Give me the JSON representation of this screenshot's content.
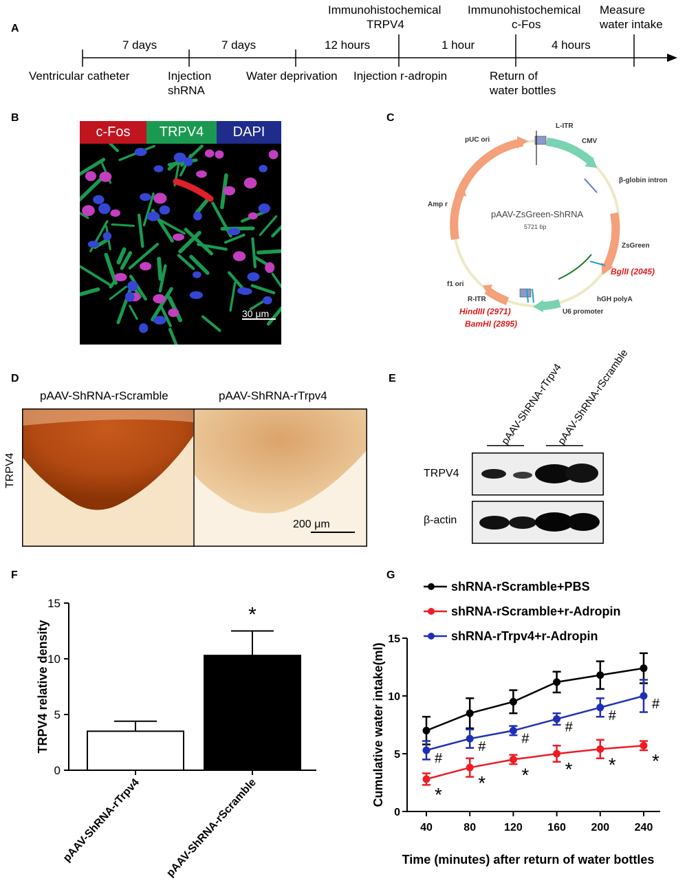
{
  "panel_labels": {
    "A": "A",
    "B": "B",
    "C": "C",
    "D": "D",
    "E": "E",
    "F": "F",
    "G": "G"
  },
  "timeline": {
    "intervals": [
      "7 days",
      "7 days",
      "12 hours",
      "1 hour",
      "4 hours"
    ],
    "events_below": [
      "Ventricular catheter",
      "Injection",
      "shRNA",
      "Water deprivation",
      "Injection r-adropin",
      "Return of",
      "water bottles"
    ],
    "events_above": [
      "Immunohistochemical",
      "TRPV4",
      "Immunohistochemical",
      "c-Fos",
      "Measure",
      "water intake"
    ]
  },
  "panel_b": {
    "legend": [
      "c-Fos",
      "TRPV4",
      "DAPI"
    ],
    "scale_bar": "30 μm",
    "colors": {
      "cfos": "#c0141f",
      "trpv4": "#1a9a50",
      "dapi": "#1f2c8c"
    }
  },
  "panel_c": {
    "title": "pAAV-ZsGreen-ShRNA",
    "size": "5721 bp",
    "features": [
      "L-ITR",
      "CMV",
      "β-globin intron",
      "ZsGreen",
      "hGH polyA",
      "U6 promoter",
      "R-ITR",
      "f1 ori",
      "Amp r",
      "pUC ori"
    ],
    "sites": [
      "BglII (2045)",
      "HindIII (2971)",
      "BamHI (2895)"
    ]
  },
  "panel_d": {
    "left_title": "pAAV-ShRNA-rScramble",
    "right_title": "pAAV-ShRNA-rTrpv4",
    "side_label": "TRPV4",
    "scale_bar": "200 μm"
  },
  "panel_e": {
    "lanes": [
      "pAAV-ShRNA-rTrpv4",
      "pAAV-ShRNA-rScramble"
    ],
    "rows": [
      "TRPV4",
      "β-actin"
    ]
  },
  "chart_data": [
    {
      "type": "bar",
      "categories": [
        "pAAV-ShRNA-rTrpv4",
        "pAAV-ShRNA-rScramble"
      ],
      "values": [
        3.5,
        10.3
      ],
      "errors": [
        0.9,
        2.2
      ],
      "fill": [
        "#ffffff",
        "#000000"
      ],
      "ylabel": "TRPV4 relative density",
      "ylim": [
        0,
        15
      ],
      "yticks": [
        "0",
        "5",
        "10",
        "15"
      ],
      "annotations": [
        "",
        "*"
      ]
    },
    {
      "type": "line",
      "x": [
        40,
        80,
        120,
        160,
        200,
        240
      ],
      "xticks": [
        "40",
        "80",
        "120",
        "160",
        "200",
        "240"
      ],
      "yticks": [
        "0",
        "5",
        "10",
        "15"
      ],
      "ylim": [
        0,
        15
      ],
      "xlabel": "Time (minutes) after return of water bottles",
      "ylabel": "Cumulative water intake(ml)",
      "legend_position": "top-left",
      "series": [
        {
          "name": "shRNA-rScramble+PBS",
          "color": "#000000",
          "values": [
            7.0,
            8.5,
            9.5,
            11.2,
            11.8,
            12.4
          ],
          "errors": [
            1.2,
            1.3,
            1.0,
            0.9,
            1.2,
            1.3
          ],
          "marks": [
            "",
            "",
            "",
            "",
            "",
            ""
          ]
        },
        {
          "name": "shRNA-rScramble+r-Adropin",
          "color": "#ee1c24",
          "values": [
            2.8,
            3.8,
            4.5,
            5.0,
            5.4,
            5.7
          ],
          "errors": [
            0.5,
            0.8,
            0.4,
            0.7,
            0.8,
            0.4
          ],
          "marks": [
            "*",
            "*",
            "*",
            "*",
            "*",
            "*"
          ]
        },
        {
          "name": "shRNA-rTrpv4+r-Adropin",
          "color": "#1f2fb4",
          "values": [
            5.3,
            6.3,
            7.0,
            8.0,
            9.0,
            10.0
          ],
          "errors": [
            0.8,
            0.8,
            0.4,
            0.5,
            0.8,
            1.4
          ],
          "marks": [
            "#",
            "#",
            "#",
            "#",
            "#",
            "#"
          ]
        }
      ]
    }
  ]
}
